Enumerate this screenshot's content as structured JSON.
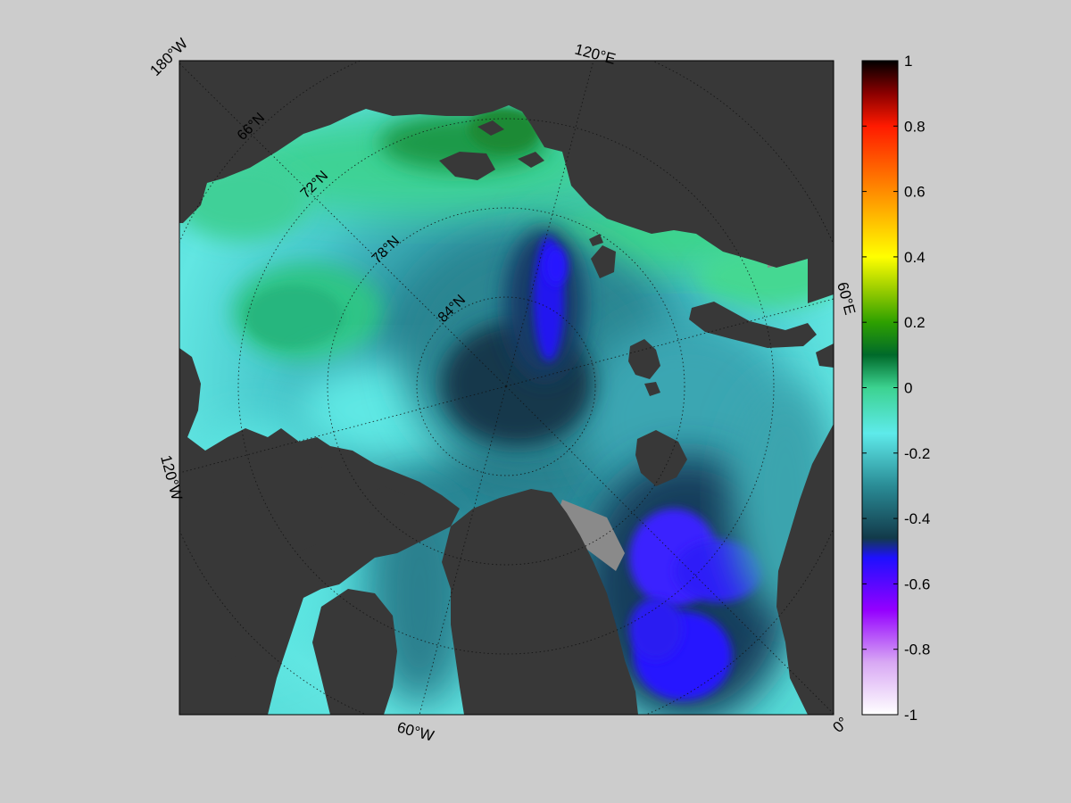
{
  "map": {
    "projection": "north-polar-stereographic",
    "field_colormap": "blue-cyan-green-yellow-red",
    "land_color": "#383838",
    "coast_shelf_color": "#8a8a8a",
    "background_color": "#cccccc",
    "longitude_labels": {
      "w180": "180°W",
      "e120": "120°E",
      "e60": "60°E",
      "e0": "0°",
      "w60": "60°W",
      "w120": "120°W"
    },
    "latitude_labels": {
      "n66": "66°N",
      "n72": "72°N",
      "n78": "78°N",
      "n84": "84°N"
    }
  },
  "colorbar": {
    "range": [
      -1,
      1
    ],
    "ticks": [
      "1",
      "0.8",
      "0.6",
      "0.4",
      "0.2",
      "0",
      "-0.2",
      "-0.4",
      "-0.6",
      "-0.8",
      "-1"
    ],
    "colors": {
      "top": "#000000",
      "dark_red": "#8b0000",
      "red": "#ff1a00",
      "orange": "#ff8c00",
      "yellow": "#ffff00",
      "yellow_green": "#9acd00",
      "green": "#2ea000",
      "dark_green": "#006a2a",
      "sea_green": "#3cd290",
      "cyan": "#5eeaea",
      "teal": "#2a8c96",
      "dark_teal": "#123a4a",
      "blue": "#1e10ff",
      "violet": "#9400ff",
      "lilac": "#d8a8f4",
      "white": "#ffffff"
    }
  }
}
